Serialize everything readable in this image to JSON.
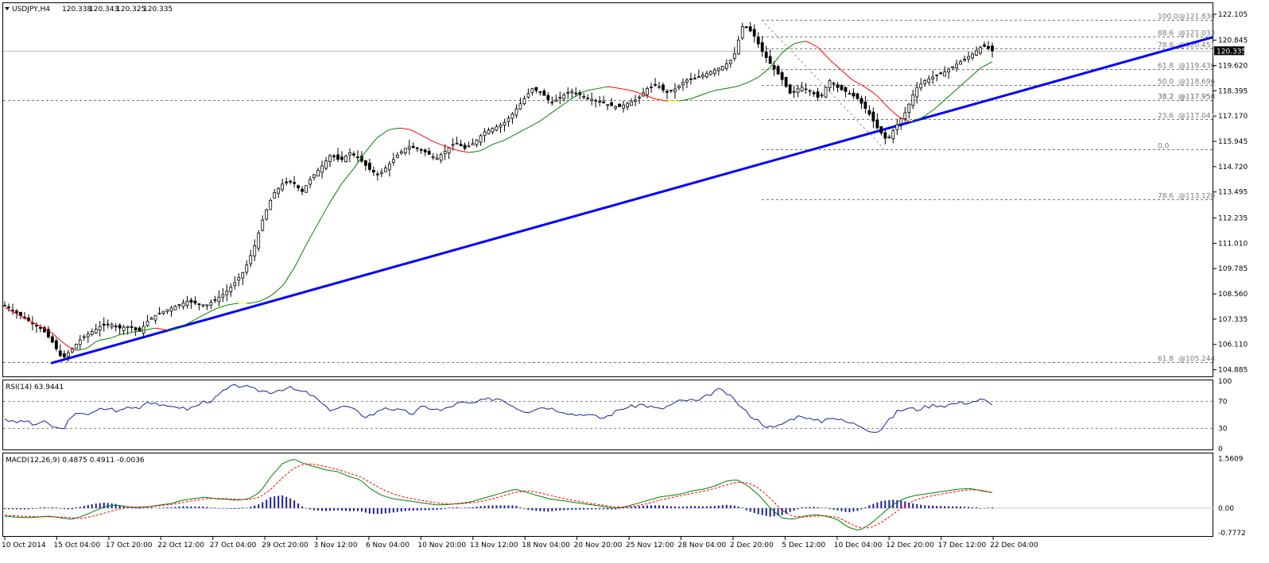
{
  "chart_data": {
    "type": "candlestick",
    "symbol_header": "USDJPY,H4",
    "ohlc_header": [
      "120.338",
      "120.343",
      "120.325",
      "120.335"
    ],
    "current_price": 120.335,
    "current_price_label": "120.335",
    "x_tick_labels": [
      "10 Oct 2014",
      "15 Oct 04:00",
      "17 Oct 20:00",
      "22 Oct 12:00",
      "27 Oct 04:00",
      "29 Oct 20:00",
      "3 Nov 12:00",
      "6 Nov 04:00",
      "10 Nov 20:00",
      "13 Nov 12:00",
      "18 Nov 04:00",
      "20 Nov 20:00",
      "25 Nov 12:00",
      "28 Nov 04:00",
      "2 Dec 20:00",
      "5 Dec 12:00",
      "10 Dec 04:00",
      "12 Dec 20:00",
      "17 Dec 12:00",
      "22 Dec 04:00"
    ],
    "price_axis_ticks": [
      "122.105",
      "120.845",
      "119.620",
      "118.395",
      "117.170",
      "115.945",
      "114.720",
      "113.495",
      "112.235",
      "111.010",
      "109.785",
      "108.560",
      "107.335",
      "106.110",
      "104.885"
    ],
    "price_range": [
      104.6,
      122.6
    ],
    "close_path": [
      108.0,
      107.7,
      107.4,
      107.1,
      106.8,
      106.2,
      105.4,
      105.9,
      106.4,
      106.7,
      107.0,
      107.1,
      106.9,
      107.0,
      106.7,
      107.3,
      107.6,
      107.8,
      108.0,
      108.2,
      108.1,
      108.0,
      108.3,
      108.6,
      109.1,
      109.7,
      110.8,
      112.3,
      113.4,
      113.9,
      114.0,
      113.5,
      114.2,
      114.7,
      115.3,
      115.0,
      115.4,
      115.1,
      114.6,
      114.3,
      114.8,
      115.3,
      115.7,
      115.6,
      115.4,
      115.1,
      115.5,
      115.9,
      115.6,
      115.9,
      116.4,
      116.6,
      116.8,
      117.3,
      117.9,
      118.5,
      118.3,
      117.8,
      118.1,
      118.4,
      118.2,
      118.0,
      117.9,
      117.7,
      117.6,
      117.8,
      118.0,
      118.5,
      118.7,
      118.3,
      118.5,
      118.9,
      119.0,
      119.2,
      119.4,
      119.6,
      120.0,
      121.6,
      121.2,
      120.3,
      119.6,
      119.0,
      118.2,
      118.6,
      118.4,
      118.0,
      118.9,
      118.5,
      118.3,
      118.0,
      117.4,
      116.6,
      116.0,
      116.7,
      117.4,
      118.5,
      118.9,
      119.1,
      119.3,
      119.6,
      119.9,
      120.2,
      120.6,
      120.335
    ],
    "overlay_ma_path": [
      107.9,
      107.6,
      107.3,
      107.0,
      106.7,
      106.2,
      105.8,
      105.9,
      106.3,
      106.4,
      106.6,
      106.7,
      106.8,
      106.9,
      106.8,
      106.9,
      107.2,
      107.5,
      107.8,
      108.0,
      108.1,
      108.1,
      108.2,
      108.5,
      109.0,
      109.9,
      111.0,
      112.0,
      113.0,
      113.9,
      114.6,
      115.4,
      116.1,
      116.5,
      116.6,
      116.5,
      116.2,
      115.9,
      115.7,
      115.5,
      115.4,
      115.5,
      115.8,
      116.0,
      116.3,
      116.6,
      116.9,
      117.3,
      117.7,
      118.1,
      118.4,
      118.5,
      118.6,
      118.5,
      118.4,
      118.2,
      118.0,
      117.9,
      117.9,
      118.0,
      118.2,
      118.4,
      118.5,
      118.6,
      118.8,
      119.1,
      119.6,
      120.3,
      120.7,
      120.8,
      120.5,
      119.9,
      119.4,
      118.9,
      118.6,
      118.2,
      117.6,
      117.1,
      116.9,
      117.1,
      117.5,
      118.0,
      118.5,
      119.0,
      119.5,
      119.8
    ],
    "overlay_ma_color_rules": {
      "up": "#008000",
      "down": "#ff0000",
      "flat": "#ffff00"
    },
    "fibonacci_levels": [
      {
        "label": "100.0",
        "price_label": "@121.830",
        "value": 121.83
      },
      {
        "label": "88.6",
        "price_label": "@121.033",
        "value": 121.033
      },
      {
        "label": "78.6",
        "price_label": "@120.451",
        "value": 120.451
      },
      {
        "label": "61.8",
        "price_label": "@119.436",
        "value": 119.436
      },
      {
        "label": "50.0",
        "price_label": "@118.696",
        "value": 118.696
      },
      {
        "label": "38.2",
        "price_label": "@117.956",
        "value": 117.956
      },
      {
        "label": "38.2",
        "price_label": "@117.950",
        "value": 117.95
      },
      {
        "label": "23.6",
        "price_label": "@117.041",
        "value": 117.041
      },
      {
        "label": "0.0",
        "price_label": "",
        "value": 115.57
      },
      {
        "label": "78.6",
        "price_label": "@113.120",
        "value": 113.12
      },
      {
        "label": "61.8",
        "price_label": "@105.244",
        "value": 105.244
      }
    ],
    "trendline": {
      "from": {
        "date": "14 Oct 2014",
        "price": 105.2
      },
      "to": {
        "date": "25 Dec 2014",
        "price": 121.0
      },
      "color": "#0000ff"
    },
    "rsi": {
      "header": "RSI(14) 63.9441",
      "axis_labels": [
        "100",
        "70",
        "30",
        "0"
      ],
      "levels": [
        70,
        30
      ],
      "range": [
        0,
        100
      ],
      "values": [
        45,
        38,
        42,
        35,
        40,
        33,
        28,
        45,
        55,
        50,
        58,
        60,
        55,
        62,
        60,
        70,
        68,
        60,
        64,
        58,
        62,
        70,
        72,
        85,
        92,
        94,
        88,
        86,
        84,
        88,
        90,
        85,
        82,
        72,
        58,
        60,
        63,
        55,
        48,
        52,
        62,
        58,
        55,
        52,
        62,
        60,
        56,
        63,
        68,
        66,
        70,
        73,
        75,
        68,
        60,
        55,
        60,
        62,
        58,
        55,
        50,
        52,
        48,
        45,
        52,
        60,
        62,
        66,
        62,
        58,
        64,
        70,
        72,
        70,
        78,
        88,
        82,
        70,
        55,
        45,
        35,
        30,
        38,
        45,
        50,
        42,
        40,
        48,
        42,
        38,
        35,
        28,
        25,
        40,
        55,
        60,
        58,
        62,
        65,
        64,
        67,
        68,
        70,
        73,
        63.9
      ]
    },
    "macd": {
      "header": "MACD(12,26,9) 0.4875 0.4911 -0.0036",
      "axis_labels": [
        "1.5609",
        "0.00",
        "-0.7772"
      ],
      "range": [
        -0.85,
        1.7
      ],
      "macd_line": [
        -0.25,
        -0.28,
        -0.3,
        -0.28,
        -0.25,
        -0.3,
        -0.35,
        -0.25,
        -0.1,
        0.05,
        0.1,
        0.05,
        0.02,
        0.05,
        0.1,
        0.15,
        0.25,
        0.3,
        0.35,
        0.3,
        0.28,
        0.25,
        0.3,
        0.5,
        1.0,
        1.4,
        1.55,
        1.4,
        1.3,
        1.2,
        1.15,
        1.0,
        0.9,
        0.6,
        0.4,
        0.3,
        0.25,
        0.2,
        0.15,
        0.1,
        0.12,
        0.15,
        0.2,
        0.3,
        0.4,
        0.5,
        0.6,
        0.5,
        0.4,
        0.3,
        0.25,
        0.2,
        0.15,
        0.1,
        0.05,
        0.0,
        0.05,
        0.15,
        0.25,
        0.35,
        0.4,
        0.45,
        0.55,
        0.6,
        0.7,
        0.85,
        0.9,
        0.7,
        0.4,
        0.0,
        -0.3,
        -0.35,
        -0.25,
        -0.2,
        -0.25,
        -0.35,
        -0.6,
        -0.7,
        -0.5,
        -0.2,
        0.1,
        0.3,
        0.4,
        0.45,
        0.5,
        0.55,
        0.6,
        0.62,
        0.55,
        0.49
      ],
      "signal_line": [
        -0.22,
        -0.24,
        -0.26,
        -0.27,
        -0.27,
        -0.28,
        -0.3,
        -0.32,
        -0.25,
        -0.15,
        -0.05,
        0.02,
        0.04,
        0.05,
        0.08,
        0.12,
        0.18,
        0.24,
        0.29,
        0.31,
        0.3,
        0.28,
        0.27,
        0.35,
        0.6,
        0.95,
        1.25,
        1.4,
        1.38,
        1.3,
        1.22,
        1.1,
        1.0,
        0.8,
        0.6,
        0.45,
        0.35,
        0.28,
        0.22,
        0.16,
        0.13,
        0.14,
        0.17,
        0.22,
        0.3,
        0.4,
        0.5,
        0.55,
        0.5,
        0.42,
        0.33,
        0.26,
        0.2,
        0.14,
        0.09,
        0.04,
        0.03,
        0.08,
        0.15,
        0.25,
        0.33,
        0.4,
        0.47,
        0.54,
        0.62,
        0.73,
        0.82,
        0.8,
        0.62,
        0.3,
        -0.05,
        -0.25,
        -0.28,
        -0.25,
        -0.24,
        -0.28,
        -0.45,
        -0.62,
        -0.62,
        -0.45,
        -0.2,
        0.05,
        0.25,
        0.35,
        0.42,
        0.48,
        0.54,
        0.58,
        0.57,
        0.4911
      ]
    }
  },
  "colors": {
    "candle": "#000000",
    "grid_dash": "#777777",
    "rsi_line": "#1f1f9f",
    "macd_hist": "#1f1f9f",
    "macd_signal": "#ff0000",
    "macd_line": "#008000",
    "trendline": "#0000ff"
  }
}
